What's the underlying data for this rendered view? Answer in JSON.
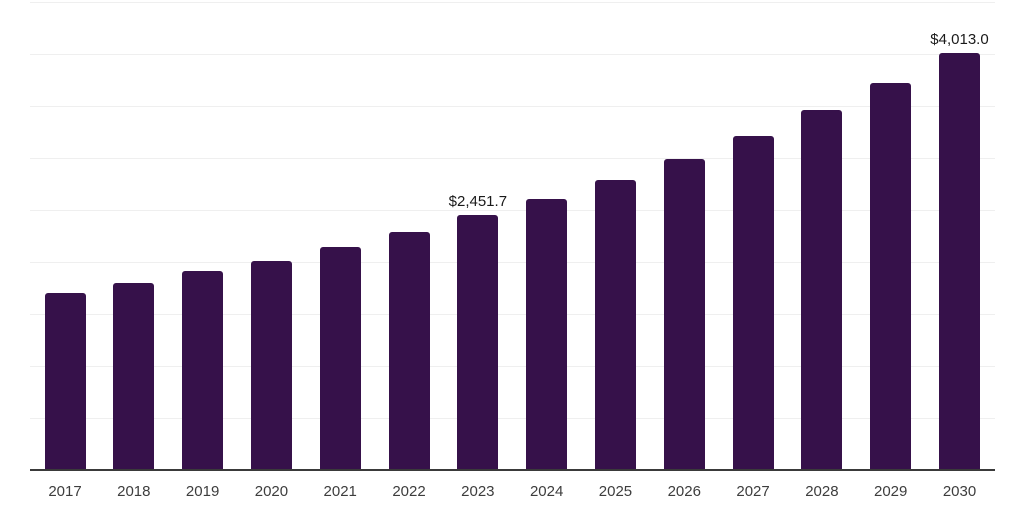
{
  "chart_data": {
    "type": "bar",
    "title": "",
    "xlabel": "",
    "ylabel": "",
    "categories": [
      "2017",
      "2018",
      "2019",
      "2020",
      "2021",
      "2022",
      "2023",
      "2024",
      "2025",
      "2026",
      "2027",
      "2028",
      "2029",
      "2030"
    ],
    "values": [
      1701.0,
      1798.5,
      1914.0,
      2013.0,
      2148.0,
      2290.0,
      2451.7,
      2606.0,
      2790.0,
      2989.0,
      3208.0,
      3466.0,
      3720.0,
      4013.0
    ],
    "value_labels": {
      "2023": "$2,451.7",
      "2030": "$4,013.0"
    },
    "ylim": [
      0,
      4500
    ],
    "grid_interval": 500,
    "grid": true,
    "legend_position": "none",
    "y_axis_labels_visible": false,
    "colors": {
      "bar": "#36114A",
      "gridline": "#efefef",
      "axis": "#3a3a3a",
      "tick_label": "#3d3d3d",
      "value_label": "#1a1a1a",
      "background": "#ffffff"
    }
  }
}
